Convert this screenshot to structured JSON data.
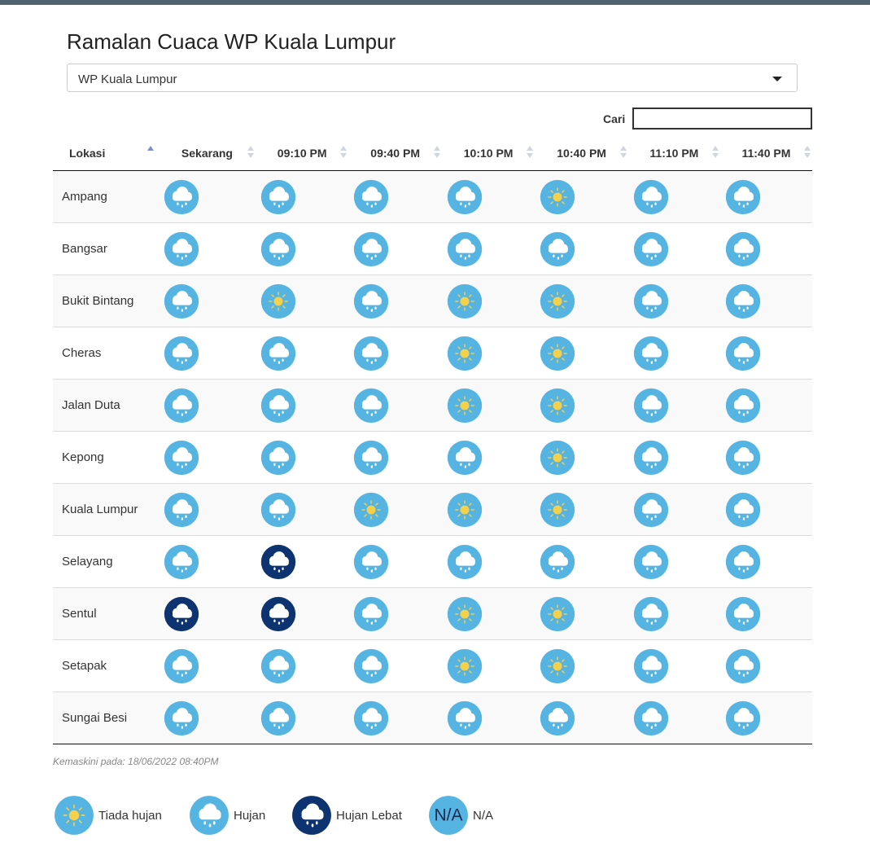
{
  "header": {
    "title": "Ramalan Cuaca WP Kuala Lumpur",
    "select": "WP Kuala Lumpur",
    "search_label": "Cari"
  },
  "table": {
    "columns": [
      "Lokasi",
      "Sekarang",
      "09:10 PM",
      "09:40 PM",
      "10:10 PM",
      "10:40 PM",
      "11:10 PM",
      "11:40 PM"
    ],
    "rows": [
      {
        "location": "Ampang",
        "forecast": [
          "Hujan",
          "Hujan",
          "Hujan",
          "Hujan",
          "Tiada hujan",
          "Hujan",
          "Hujan"
        ]
      },
      {
        "location": "Bangsar",
        "forecast": [
          "Hujan",
          "Hujan",
          "Hujan",
          "Hujan",
          "Hujan",
          "Hujan",
          "Hujan"
        ]
      },
      {
        "location": "Bukit Bintang",
        "forecast": [
          "Hujan",
          "Tiada hujan",
          "Hujan",
          "Tiada hujan",
          "Tiada hujan",
          "Hujan",
          "Hujan"
        ]
      },
      {
        "location": "Cheras",
        "forecast": [
          "Hujan",
          "Hujan",
          "Hujan",
          "Tiada hujan",
          "Tiada hujan",
          "Hujan",
          "Hujan"
        ]
      },
      {
        "location": "Jalan Duta",
        "forecast": [
          "Hujan",
          "Hujan",
          "Hujan",
          "Tiada hujan",
          "Tiada hujan",
          "Hujan",
          "Hujan"
        ]
      },
      {
        "location": "Kepong",
        "forecast": [
          "Hujan",
          "Hujan",
          "Hujan",
          "Hujan",
          "Tiada hujan",
          "Hujan",
          "Hujan"
        ]
      },
      {
        "location": "Kuala Lumpur",
        "forecast": [
          "Hujan",
          "Hujan",
          "Tiada hujan",
          "Tiada hujan",
          "Tiada hujan",
          "Hujan",
          "Hujan"
        ]
      },
      {
        "location": "Selayang",
        "forecast": [
          "Hujan",
          "Hujan Lebat",
          "Hujan",
          "Hujan",
          "Hujan",
          "Hujan",
          "Hujan"
        ]
      },
      {
        "location": "Sentul",
        "forecast": [
          "Hujan Lebat",
          "Hujan Lebat",
          "Hujan",
          "Tiada hujan",
          "Tiada hujan",
          "Hujan",
          "Hujan"
        ]
      },
      {
        "location": "Setapak",
        "forecast": [
          "Hujan",
          "Hujan",
          "Hujan",
          "Tiada hujan",
          "Tiada hujan",
          "Hujan",
          "Hujan"
        ]
      },
      {
        "location": "Sungai Besi",
        "forecast": [
          "Hujan",
          "Hujan",
          "Hujan",
          "Hujan",
          "Hujan",
          "Hujan",
          "Hujan"
        ]
      }
    ]
  },
  "updated": "Kemaskini pada: 18/06/2022 08:40PM",
  "legend": [
    {
      "label": "Tiada hujan"
    },
    {
      "label": "Hujan"
    },
    {
      "label": "Hujan Lebat"
    },
    {
      "icon_text": "N/A",
      "label": "N/A"
    }
  ]
}
